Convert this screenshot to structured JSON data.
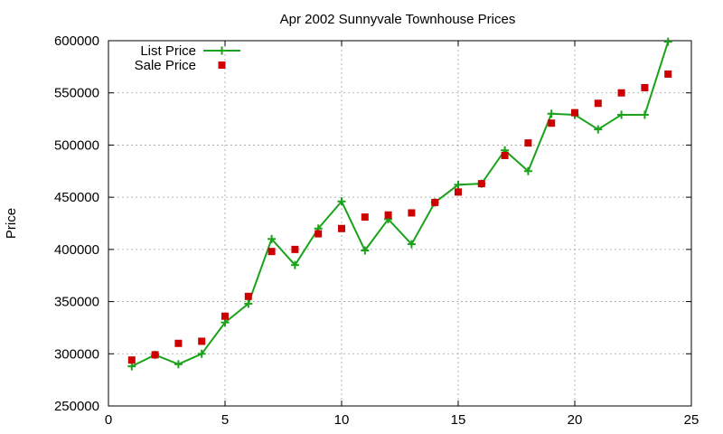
{
  "chart_data": {
    "type": "line",
    "title": "Apr 2002 Sunnyvale Townhouse Prices",
    "xlabel": "",
    "ylabel": "Price",
    "xlim": [
      0,
      25
    ],
    "ylim": [
      250000,
      600000
    ],
    "x_ticks": [
      0,
      5,
      10,
      15,
      20,
      25
    ],
    "y_ticks": [
      250000,
      300000,
      350000,
      400000,
      450000,
      500000,
      550000,
      600000
    ],
    "x_tick_labels": [
      "0",
      "5",
      "10",
      "15",
      "20",
      "25"
    ],
    "y_tick_labels": [
      "250000",
      "300000",
      "350000",
      "400000",
      "450000",
      "500000",
      "550000",
      "600000"
    ],
    "grid": true,
    "legend_position": "top-left",
    "series": [
      {
        "name": "List Price",
        "style": "line-plus",
        "color": "#1aa31a",
        "x": [
          1,
          2,
          3,
          4,
          5,
          6,
          7,
          8,
          9,
          10,
          11,
          12,
          13,
          14,
          15,
          16,
          17,
          18,
          19,
          20,
          21,
          22,
          23,
          24
        ],
        "values": [
          288000,
          299000,
          290000,
          300000,
          330000,
          348000,
          410000,
          385000,
          420000,
          446000,
          399000,
          429000,
          405000,
          445000,
          462000,
          463000,
          495000,
          475000,
          530000,
          529000,
          515000,
          529000,
          529000,
          599000
        ]
      },
      {
        "name": "Sale Price",
        "style": "square-points",
        "color": "#cc0000",
        "x": [
          1,
          2,
          3,
          4,
          5,
          6,
          7,
          8,
          9,
          10,
          11,
          12,
          13,
          14,
          15,
          16,
          17,
          18,
          19,
          20,
          21,
          22,
          23,
          24
        ],
        "values": [
          294000,
          299000,
          310000,
          312000,
          336000,
          355000,
          398000,
          400000,
          415000,
          420000,
          431000,
          433000,
          435000,
          445000,
          455000,
          463000,
          490000,
          502000,
          521000,
          531000,
          540000,
          550000,
          555000,
          568000
        ]
      }
    ]
  }
}
